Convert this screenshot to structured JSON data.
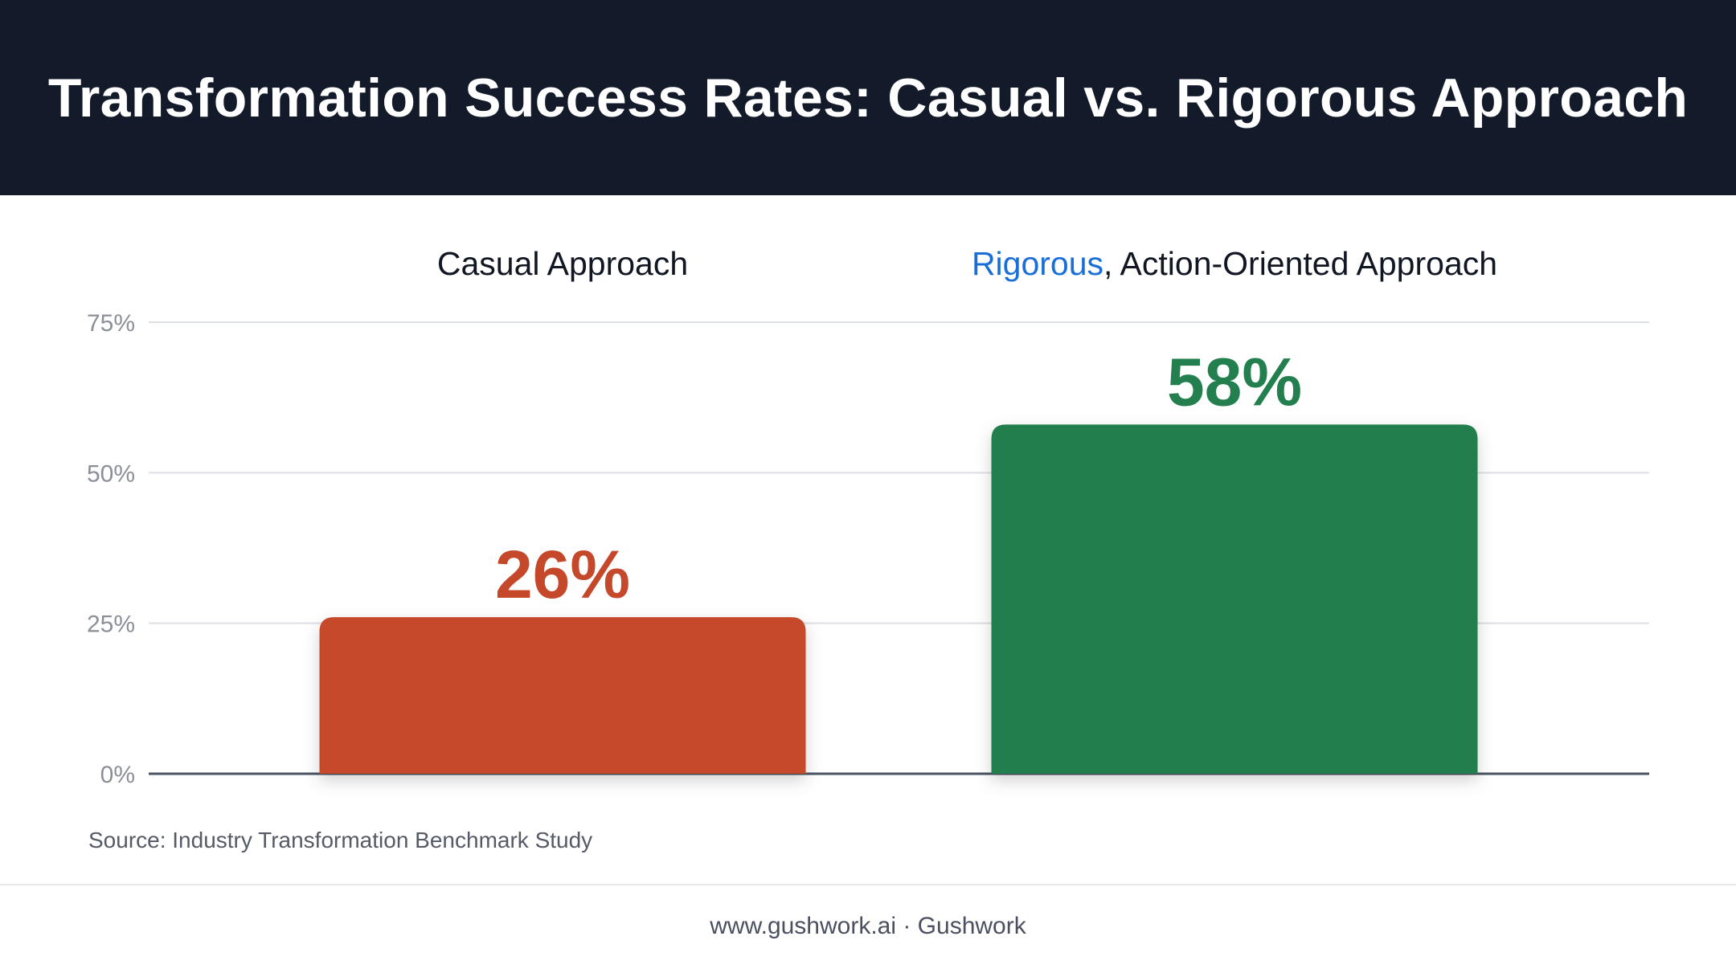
{
  "header": {
    "title": "Transformation Success Rates: Casual vs. Rigorous Approach",
    "bg_color": "#131a2a"
  },
  "chart_data": {
    "type": "bar",
    "categories": [
      {
        "label": "Casual Approach",
        "highlight": "",
        "rest": "Casual Approach"
      },
      {
        "label": "Rigorous, Action-Oriented Approach",
        "highlight": "Rigorous",
        "rest": ", Action-Oriented Approach"
      }
    ],
    "values": [
      26,
      58
    ],
    "value_labels": [
      "26%",
      "58%"
    ],
    "colors": [
      "#c5482b",
      "#237f4e"
    ],
    "highlight_color": "#1a6fd6",
    "ylim": [
      0,
      75
    ],
    "yticks": [
      0,
      25,
      50,
      75
    ],
    "ytick_labels": [
      "0%",
      "25%",
      "50%",
      "75%"
    ],
    "grid": true,
    "legend": "none"
  },
  "source": "Source: Industry Transformation Benchmark Study",
  "footer": "www.gushwork.ai · Gushwork"
}
